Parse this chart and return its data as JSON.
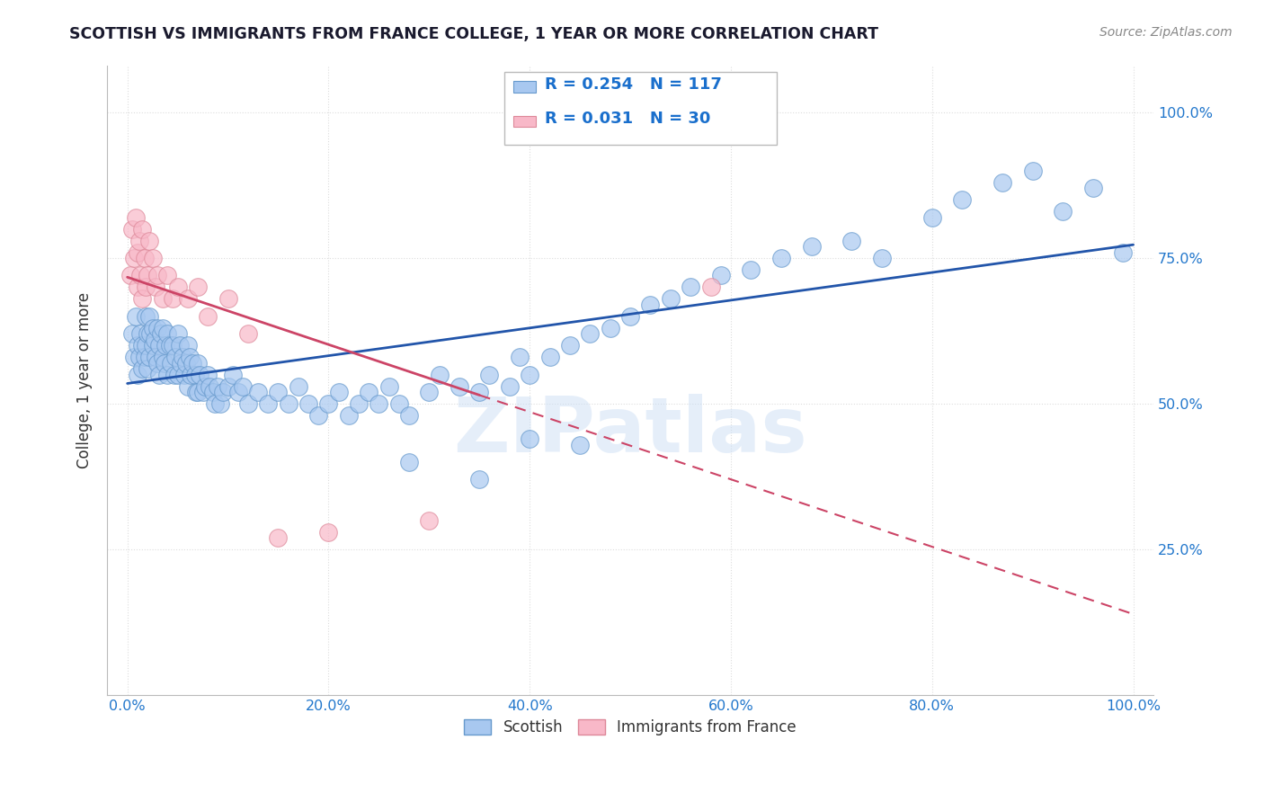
{
  "title": "SCOTTISH VS IMMIGRANTS FROM FRANCE COLLEGE, 1 YEAR OR MORE CORRELATION CHART",
  "source_text": "Source: ZipAtlas.com",
  "ylabel": "College, 1 year or more",
  "xlim": [
    -0.02,
    1.02
  ],
  "ylim": [
    0.0,
    1.08
  ],
  "xtick_labels": [
    "0.0%",
    "20.0%",
    "40.0%",
    "60.0%",
    "80.0%",
    "100.0%"
  ],
  "xtick_vals": [
    0.0,
    0.2,
    0.4,
    0.6,
    0.8,
    1.0
  ],
  "ytick_labels": [
    "25.0%",
    "50.0%",
    "75.0%",
    "100.0%"
  ],
  "ytick_vals": [
    0.25,
    0.5,
    0.75,
    1.0
  ],
  "blue_scatter_color": "#a8c8f0",
  "blue_edge_color": "#6699cc",
  "pink_scatter_color": "#f8b8c8",
  "pink_edge_color": "#dd8899",
  "blue_line_color": "#2255aa",
  "pink_line_color": "#cc4466",
  "legend_blue_label": "Scottish",
  "legend_pink_label": "Immigrants from France",
  "R_blue": 0.254,
  "N_blue": 117,
  "R_pink": 0.031,
  "N_pink": 30,
  "watermark": "ZIPatlas",
  "title_color": "#1a1a2e",
  "legend_text_color": "#1a6fcc",
  "background_color": "#ffffff",
  "grid_color": "#dddddd",
  "blue_x": [
    0.005,
    0.007,
    0.008,
    0.01,
    0.01,
    0.012,
    0.013,
    0.015,
    0.015,
    0.017,
    0.018,
    0.018,
    0.02,
    0.02,
    0.022,
    0.022,
    0.023,
    0.025,
    0.025,
    0.027,
    0.028,
    0.03,
    0.03,
    0.032,
    0.032,
    0.033,
    0.035,
    0.035,
    0.037,
    0.038,
    0.04,
    0.04,
    0.042,
    0.043,
    0.045,
    0.047,
    0.048,
    0.05,
    0.05,
    0.052,
    0.053,
    0.055,
    0.057,
    0.058,
    0.06,
    0.06,
    0.062,
    0.063,
    0.065,
    0.067,
    0.068,
    0.07,
    0.07,
    0.072,
    0.075,
    0.077,
    0.08,
    0.082,
    0.085,
    0.087,
    0.09,
    0.092,
    0.095,
    0.1,
    0.105,
    0.11,
    0.115,
    0.12,
    0.13,
    0.14,
    0.15,
    0.16,
    0.17,
    0.18,
    0.19,
    0.2,
    0.21,
    0.22,
    0.23,
    0.24,
    0.25,
    0.26,
    0.27,
    0.28,
    0.3,
    0.31,
    0.33,
    0.35,
    0.36,
    0.38,
    0.39,
    0.4,
    0.42,
    0.44,
    0.46,
    0.48,
    0.5,
    0.52,
    0.54,
    0.56,
    0.59,
    0.62,
    0.65,
    0.68,
    0.72,
    0.75,
    0.8,
    0.83,
    0.87,
    0.9,
    0.93,
    0.96,
    0.99,
    0.4,
    0.45,
    0.35,
    0.28
  ],
  "blue_y": [
    0.62,
    0.58,
    0.65,
    0.6,
    0.55,
    0.58,
    0.62,
    0.6,
    0.56,
    0.58,
    0.65,
    0.6,
    0.62,
    0.56,
    0.65,
    0.58,
    0.62,
    0.6,
    0.63,
    0.61,
    0.58,
    0.63,
    0.57,
    0.6,
    0.55,
    0.62,
    0.58,
    0.63,
    0.57,
    0.6,
    0.62,
    0.55,
    0.6,
    0.57,
    0.6,
    0.55,
    0.58,
    0.62,
    0.55,
    0.6,
    0.57,
    0.58,
    0.55,
    0.57,
    0.6,
    0.53,
    0.58,
    0.55,
    0.57,
    0.55,
    0.52,
    0.57,
    0.52,
    0.55,
    0.52,
    0.53,
    0.55,
    0.53,
    0.52,
    0.5,
    0.53,
    0.5,
    0.52,
    0.53,
    0.55,
    0.52,
    0.53,
    0.5,
    0.52,
    0.5,
    0.52,
    0.5,
    0.53,
    0.5,
    0.48,
    0.5,
    0.52,
    0.48,
    0.5,
    0.52,
    0.5,
    0.53,
    0.5,
    0.48,
    0.52,
    0.55,
    0.53,
    0.52,
    0.55,
    0.53,
    0.58,
    0.55,
    0.58,
    0.6,
    0.62,
    0.63,
    0.65,
    0.67,
    0.68,
    0.7,
    0.72,
    0.73,
    0.75,
    0.77,
    0.78,
    0.75,
    0.82,
    0.85,
    0.88,
    0.9,
    0.83,
    0.87,
    0.76,
    0.44,
    0.43,
    0.37,
    0.4
  ],
  "pink_x": [
    0.003,
    0.005,
    0.007,
    0.008,
    0.01,
    0.01,
    0.012,
    0.013,
    0.015,
    0.015,
    0.017,
    0.018,
    0.02,
    0.022,
    0.025,
    0.028,
    0.03,
    0.035,
    0.04,
    0.045,
    0.05,
    0.06,
    0.07,
    0.08,
    0.1,
    0.12,
    0.15,
    0.2,
    0.3,
    0.58
  ],
  "pink_y": [
    0.72,
    0.8,
    0.75,
    0.82,
    0.76,
    0.7,
    0.78,
    0.72,
    0.8,
    0.68,
    0.75,
    0.7,
    0.72,
    0.78,
    0.75,
    0.7,
    0.72,
    0.68,
    0.72,
    0.68,
    0.7,
    0.68,
    0.7,
    0.65,
    0.68,
    0.62,
    0.27,
    0.28,
    0.3,
    0.7
  ]
}
